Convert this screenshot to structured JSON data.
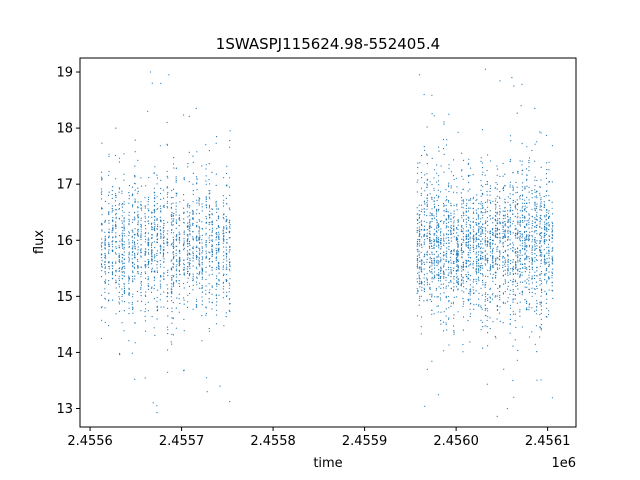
{
  "chart_data": {
    "type": "scatter",
    "title": "1SWASPJ115624.98-552405.4",
    "xlabel": "time",
    "ylabel": "flux",
    "x_offset_label": "1e6",
    "xlim": [
      2455589,
      2456131
    ],
    "ylim": [
      12.67,
      19.25
    ],
    "x_ticks": [
      2455600,
      2455700,
      2455800,
      2455900,
      2456000,
      2456100
    ],
    "x_tick_labels": [
      "2.4556",
      "2.4557",
      "2.4558",
      "2.4559",
      "2.4560",
      "2.4561"
    ],
    "y_ticks": [
      13,
      14,
      15,
      16,
      17,
      18,
      19
    ],
    "y_tick_labels": [
      "13",
      "14",
      "15",
      "16",
      "17",
      "18",
      "19"
    ],
    "grid": false,
    "marker_color": "#1f77b4",
    "series": [
      {
        "segments": [
          {
            "t_start": 2455612,
            "t_end": 2455754,
            "flux_center": 15.9,
            "flux_spread": 0.55,
            "nights": 40,
            "points_per_night": 45
          },
          {
            "t_start": 2455956,
            "t_end": 2456106,
            "flux_center": 15.9,
            "flux_spread": 0.55,
            "nights": 56,
            "points_per_night": 45
          }
        ],
        "outliers": [
          {
            "x": 2455666,
            "y": 19.0
          },
          {
            "x": 2455668,
            "y": 18.8
          },
          {
            "x": 2455686,
            "y": 18.95
          },
          {
            "x": 2455663,
            "y": 18.3
          },
          {
            "x": 2455716,
            "y": 18.35
          },
          {
            "x": 2455753,
            "y": 17.95
          },
          {
            "x": 2455960,
            "y": 18.95
          },
          {
            "x": 2455965,
            "y": 18.6
          },
          {
            "x": 2456032,
            "y": 19.05
          },
          {
            "x": 2456061,
            "y": 18.9
          },
          {
            "x": 2456063,
            "y": 18.75
          },
          {
            "x": 2456071,
            "y": 18.4
          },
          {
            "x": 2456086,
            "y": 18.35
          },
          {
            "x": 2455669,
            "y": 13.1
          },
          {
            "x": 2455673,
            "y": 13.05
          },
          {
            "x": 2455728,
            "y": 13.3
          },
          {
            "x": 2455742,
            "y": 13.4
          },
          {
            "x": 2456056,
            "y": 13.0
          },
          {
            "x": 2456062,
            "y": 13.5
          },
          {
            "x": 2456052,
            "y": 13.7
          },
          {
            "x": 2456063,
            "y": 13.2
          }
        ]
      }
    ]
  }
}
